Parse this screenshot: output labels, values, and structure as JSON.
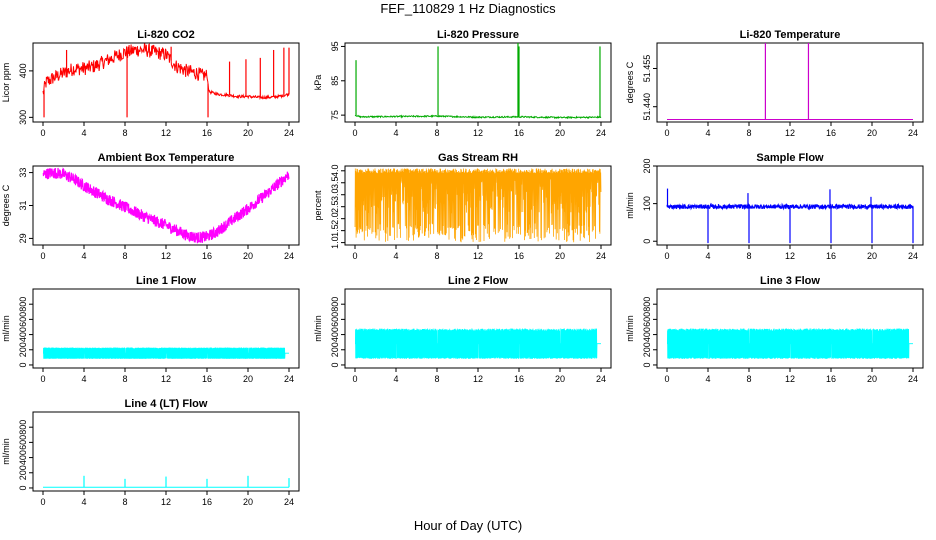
{
  "title": "FEF_110829  1 Hz Diagnostics",
  "xlabel": "Hour of Day (UTC)",
  "chart_data": [
    {
      "type": "line",
      "title": "Li-820 CO2",
      "ylabel": "Licor ppm",
      "color": "#ff0000",
      "xlim": [
        0,
        24
      ],
      "ylim": [
        290,
        460
      ],
      "xticks": [
        0,
        4,
        8,
        12,
        16,
        20,
        24
      ],
      "yticks": [
        300,
        400
      ],
      "ytick_labels": [
        "300",
        "400"
      ],
      "series": [
        {
          "x": [
            0,
            0.3,
            1,
            2,
            3,
            4,
            5,
            6,
            7,
            8,
            8.2,
            9,
            10,
            11,
            12,
            13,
            14,
            15,
            15.5,
            16,
            16.2,
            17,
            18,
            19,
            20,
            21,
            22,
            23,
            24
          ],
          "y": [
            352,
            375,
            385,
            395,
            405,
            405,
            410,
            420,
            430,
            440,
            440,
            445,
            445,
            440,
            435,
            410,
            400,
            395,
            390,
            390,
            355,
            350,
            348,
            345,
            345,
            343,
            343,
            345,
            350
          ]
        }
      ],
      "spikes": [
        {
          "x": 0.1,
          "y": 300
        },
        {
          "x": 2.3,
          "y": 445
        },
        {
          "x": 8.2,
          "y": 300
        },
        {
          "x": 12.5,
          "y": 452
        },
        {
          "x": 16.1,
          "y": 300
        },
        {
          "x": 18.2,
          "y": 420
        },
        {
          "x": 19.8,
          "y": 425
        },
        {
          "x": 21.2,
          "y": 428
        },
        {
          "x": 22.5,
          "y": 445
        },
        {
          "x": 23.5,
          "y": 450
        },
        {
          "x": 24,
          "y": 450
        }
      ]
    },
    {
      "type": "line",
      "title": "Li-820 Pressure",
      "ylabel": "kPa",
      "color": "#00aa00",
      "xlim": [
        0,
        24
      ],
      "ylim": [
        73,
        96
      ],
      "xticks": [
        0,
        4,
        8,
        12,
        16,
        20,
        24
      ],
      "yticks": [
        75,
        85,
        95
      ],
      "ytick_labels": [
        "75",
        "85",
        "95"
      ],
      "series": [
        {
          "x": [
            0,
            0.5,
            8,
            12,
            16,
            20,
            24
          ],
          "y": [
            75,
            74.5,
            74.7,
            74.4,
            74.5,
            74.3,
            74.4
          ]
        }
      ],
      "spikes": [
        {
          "x": 0.1,
          "y": 91
        },
        {
          "x": 8.1,
          "y": 95
        },
        {
          "x": 15.9,
          "y": 96
        },
        {
          "x": 16,
          "y": 95
        },
        {
          "x": 23.9,
          "y": 95
        }
      ]
    },
    {
      "type": "line",
      "title": "Li-820 Temperature",
      "ylabel": "degrees C",
      "color": "#cc00cc",
      "xlim": [
        0,
        24
      ],
      "ylim": [
        51.434,
        51.465
      ],
      "xticks": [
        0,
        4,
        8,
        12,
        16,
        20,
        24
      ],
      "yticks": [
        51.44,
        51.455
      ],
      "ytick_labels": [
        "51.440",
        "51.455"
      ],
      "series": [
        {
          "x": [
            0,
            24
          ],
          "y": [
            51.435,
            51.435
          ]
        }
      ],
      "spikes": [
        {
          "x": 9.6,
          "y": 51.465
        },
        {
          "x": 13.8,
          "y": 51.465
        }
      ]
    },
    {
      "type": "line",
      "title": "Ambient Box Temperature",
      "ylabel": "degrees C",
      "color": "#ff00ff",
      "xlim": [
        0,
        24
      ],
      "ylim": [
        28.6,
        33.4
      ],
      "xticks": [
        0,
        4,
        8,
        12,
        16,
        20,
        24
      ],
      "yticks": [
        29,
        31,
        33
      ],
      "ytick_labels": [
        "29",
        "31",
        "33"
      ],
      "band": 0.35,
      "series": [
        {
          "x": [
            0,
            1,
            2,
            3,
            4,
            6,
            8,
            10,
            12,
            13,
            14,
            15,
            16,
            17,
            18,
            20,
            22,
            24
          ],
          "y": [
            32.9,
            33.0,
            32.9,
            32.6,
            32.2,
            31.5,
            30.9,
            30.3,
            29.8,
            29.5,
            29.2,
            29.05,
            29.1,
            29.4,
            29.9,
            30.8,
            31.8,
            32.9
          ]
        }
      ]
    },
    {
      "type": "line",
      "title": "Gas Stream RH",
      "ylabel": "percent",
      "color": "#ffa500",
      "xlim": [
        0,
        24
      ],
      "ylim": [
        0.9,
        4.2
      ],
      "xticks": [
        0,
        4,
        8,
        12,
        16,
        20,
        24
      ],
      "yticks": [
        1.0,
        1.5,
        2.0,
        2.5,
        3.0,
        3.5,
        4.0
      ],
      "ytick_labels": [
        "1.0",
        "1.5",
        "2.0",
        "2.5",
        "3.0",
        "3.5",
        "4.0"
      ],
      "series": [
        {
          "x": [
            0,
            24
          ],
          "y": [
            1.0,
            4.1
          ]
        }
      ]
    },
    {
      "type": "line",
      "title": "Sample Flow",
      "ylabel": "ml/min",
      "color": "#0000ff",
      "xlim": [
        0,
        24
      ],
      "ylim": [
        -10,
        200
      ],
      "xticks": [
        0,
        4,
        8,
        12,
        16,
        20,
        24
      ],
      "yticks": [
        0,
        100,
        200
      ],
      "ytick_labels": [
        "0",
        "100",
        "200"
      ],
      "band": 6,
      "series": [
        {
          "x": [
            0,
            24
          ],
          "y": [
            92,
            92
          ]
        }
      ],
      "spikes": [
        {
          "x": 0.05,
          "y": 140
        },
        {
          "x": 4,
          "y": -5
        },
        {
          "x": 7.9,
          "y": 128
        },
        {
          "x": 8,
          "y": -5
        },
        {
          "x": 12,
          "y": -5
        },
        {
          "x": 15.9,
          "y": 138
        },
        {
          "x": 16,
          "y": -5
        },
        {
          "x": 19.9,
          "y": 118
        },
        {
          "x": 20,
          "y": -5
        },
        {
          "x": 24,
          "y": -5
        }
      ]
    },
    {
      "type": "line",
      "title": "Line 1 Flow",
      "ylabel": "ml/min",
      "color": "#00ffff",
      "xlim": [
        0,
        24
      ],
      "ylim": [
        -40,
        1000
      ],
      "xticks": [
        0,
        4,
        8,
        12,
        16,
        20,
        24
      ],
      "yticks": [
        0,
        200,
        400,
        600,
        800
      ],
      "ytick_labels": [
        "0",
        "200",
        "400",
        "600",
        "800"
      ],
      "series": [
        {
          "x": [
            0,
            24
          ],
          "y": [
            80,
            230
          ]
        }
      ]
    },
    {
      "type": "line",
      "title": "Line 2 Flow",
      "ylabel": "ml/min",
      "color": "#00ffff",
      "xlim": [
        0,
        24
      ],
      "ylim": [
        -40,
        1000
      ],
      "xticks": [
        0,
        4,
        8,
        12,
        16,
        20,
        24
      ],
      "yticks": [
        0,
        200,
        400,
        600,
        800
      ],
      "ytick_labels": [
        "0",
        "200",
        "400",
        "600",
        "800"
      ],
      "series": [
        {
          "x": [
            0,
            24
          ],
          "y": [
            80,
            480
          ]
        }
      ]
    },
    {
      "type": "line",
      "title": "Line 3 Flow",
      "ylabel": "ml/min",
      "color": "#00ffff",
      "xlim": [
        0,
        24
      ],
      "ylim": [
        -40,
        1000
      ],
      "xticks": [
        0,
        4,
        8,
        12,
        16,
        20,
        24
      ],
      "yticks": [
        0,
        200,
        400,
        600,
        800
      ],
      "ytick_labels": [
        "0",
        "200",
        "400",
        "600",
        "800"
      ],
      "series": [
        {
          "x": [
            0,
            24
          ],
          "y": [
            80,
            480
          ]
        }
      ]
    },
    {
      "type": "line",
      "title": "Line 4 (LT) Flow",
      "ylabel": "ml/min",
      "color": "#00ffff",
      "xlim": [
        0,
        24
      ],
      "ylim": [
        -40,
        1000
      ],
      "xticks": [
        0,
        4,
        8,
        12,
        16,
        20,
        24
      ],
      "yticks": [
        0,
        200,
        400,
        600,
        800
      ],
      "ytick_labels": [
        "0",
        "200",
        "400",
        "600",
        "800"
      ],
      "series": [
        {
          "x": [
            0,
            24
          ],
          "y": [
            10,
            10
          ]
        }
      ],
      "spikes": [
        {
          "x": 4,
          "y": 160
        },
        {
          "x": 8,
          "y": 120
        },
        {
          "x": 12,
          "y": 150
        },
        {
          "x": 16,
          "y": 120
        },
        {
          "x": 20,
          "y": 160
        },
        {
          "x": 24,
          "y": 130
        }
      ]
    }
  ]
}
